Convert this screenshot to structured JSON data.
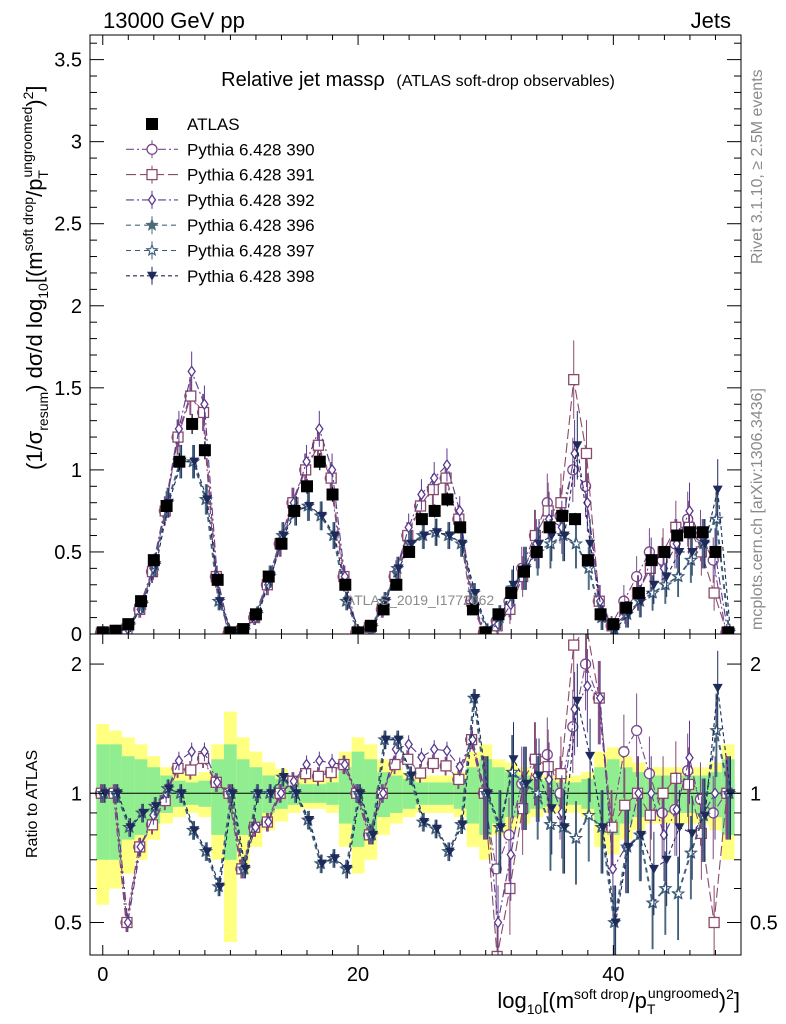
{
  "header": {
    "left": "13000 GeV pp",
    "right": "Jets"
  },
  "side_labels": {
    "rivet": "Rivet 3.1.10, ≥ 2.5M events",
    "mcplots": "mcplots.cern.ch [arXiv:1306.3436]"
  },
  "watermark": "ATLAS_2019_I1772062",
  "chart_data": {
    "type": "scatter",
    "title_main": "Relative jet massρ",
    "title_sub": "(ATLAS soft-drop observables)",
    "ylabel_main": "(1/σresum) dσ/d log10[(m^soft drop/pT^ungroomed)^2]",
    "ylabel_ratio": "Ratio to ATLAS",
    "xlabel": "log10[(m^soft drop/pT^ungroomed)^2]",
    "x_ticks": [
      "0",
      "20",
      "40"
    ],
    "y_ticks_main": [
      "0",
      "0.5",
      "1",
      "1.5",
      "2",
      "2.5",
      "3",
      "3.5"
    ],
    "y_ticks_ratio": [
      "0.5",
      "1",
      "2"
    ],
    "xlim": [
      -1,
      50
    ],
    "ylim_main": [
      0,
      3.65
    ],
    "ylim_ratio": [
      0.42,
      2.35
    ],
    "ratio_log_scale": true,
    "legend_position": "top-left",
    "x": [
      0,
      1,
      2,
      3,
      4,
      5,
      6,
      7,
      8,
      9,
      10,
      11,
      12,
      13,
      14,
      15,
      16,
      17,
      18,
      19,
      20,
      21,
      22,
      23,
      24,
      25,
      26,
      27,
      28,
      29,
      30,
      31,
      32,
      33,
      34,
      35,
      36,
      37,
      38,
      39,
      40,
      41,
      42,
      43,
      44,
      45,
      46,
      47,
      48,
      49
    ],
    "data": {
      "name": "ATLAS",
      "values": [
        0.01,
        0.02,
        0.06,
        0.2,
        0.45,
        0.78,
        1.05,
        1.28,
        1.12,
        0.33,
        0.01,
        0.03,
        0.12,
        0.35,
        0.55,
        0.75,
        0.9,
        1.05,
        0.85,
        0.3,
        0.01,
        0.05,
        0.15,
        0.3,
        0.5,
        0.7,
        0.75,
        0.82,
        0.65,
        0.15,
        0.01,
        0.12,
        0.25,
        0.38,
        0.5,
        0.65,
        0.72,
        0.7,
        0.45,
        0.12,
        0.06,
        0.16,
        0.25,
        0.45,
        0.5,
        0.6,
        0.62,
        0.62,
        0.5,
        0.01
      ],
      "stat_band": [
        0.3,
        0.3,
        0.22,
        0.2,
        0.15,
        0.1,
        0.07,
        0.06,
        0.07,
        0.2,
        0.3,
        0.2,
        0.15,
        0.1,
        0.08,
        0.06,
        0.05,
        0.05,
        0.06,
        0.15,
        0.25,
        0.2,
        0.12,
        0.1,
        0.08,
        0.06,
        0.06,
        0.06,
        0.08,
        0.15,
        0.2,
        0.15,
        0.12,
        0.1,
        0.08,
        0.07,
        0.06,
        0.06,
        0.08,
        0.15,
        0.2,
        0.15,
        0.12,
        0.1,
        0.1,
        0.1,
        0.1,
        0.1,
        0.12,
        0.2
      ],
      "total_band": [
        0.45,
        0.4,
        0.35,
        0.3,
        0.22,
        0.15,
        0.12,
        0.1,
        0.12,
        0.3,
        0.55,
        0.35,
        0.25,
        0.18,
        0.14,
        0.1,
        0.08,
        0.08,
        0.1,
        0.25,
        0.35,
        0.3,
        0.2,
        0.15,
        0.12,
        0.1,
        0.1,
        0.1,
        0.12,
        0.25,
        0.3,
        0.2,
        0.18,
        0.15,
        0.12,
        0.1,
        0.1,
        0.1,
        0.12,
        0.25,
        0.28,
        0.22,
        0.18,
        0.15,
        0.15,
        0.15,
        0.15,
        0.15,
        0.18,
        0.3
      ]
    },
    "series": [
      {
        "name": "Pythia 6.428 390",
        "color": "#7a4a8a",
        "marker": "circle-open",
        "dash": "8,3,2,3",
        "values": [
          0.005,
          0.01,
          0.03,
          0.15,
          0.38,
          0.75,
          1.2,
          1.45,
          1.35,
          0.35,
          0.005,
          0.02,
          0.1,
          0.3,
          0.55,
          0.8,
          1.0,
          1.15,
          0.95,
          0.35,
          0.01,
          0.04,
          0.15,
          0.35,
          0.6,
          0.78,
          0.88,
          0.95,
          0.7,
          0.2,
          0.01,
          0.08,
          0.2,
          0.4,
          0.6,
          0.8,
          0.72,
          1.0,
          0.9,
          0.2,
          0.05,
          0.2,
          0.35,
          0.5,
          0.45,
          0.55,
          0.7,
          0.6,
          0.45,
          0.01
        ]
      },
      {
        "name": "Pythia 6.428 391",
        "color": "#8a4a6a",
        "marker": "square-open",
        "dash": "10,4",
        "values": [
          0.005,
          0.01,
          0.03,
          0.15,
          0.38,
          0.75,
          1.2,
          1.45,
          1.35,
          0.35,
          0.005,
          0.02,
          0.1,
          0.3,
          0.55,
          0.8,
          1.0,
          1.15,
          0.95,
          0.35,
          0.01,
          0.04,
          0.15,
          0.35,
          0.6,
          0.78,
          0.88,
          0.95,
          0.7,
          0.2,
          0.01,
          0.05,
          0.15,
          0.35,
          0.6,
          0.75,
          0.8,
          1.55,
          1.1,
          0.2,
          0.05,
          0.15,
          0.25,
          0.4,
          0.5,
          0.65,
          0.65,
          0.5,
          0.25,
          0.01
        ]
      },
      {
        "name": "Pythia 6.428 392",
        "color": "#5a3a90",
        "marker": "diamond-open",
        "dash": "8,3,2,3",
        "values": [
          0.005,
          0.01,
          0.03,
          0.15,
          0.4,
          0.78,
          1.25,
          1.6,
          1.4,
          0.35,
          0.005,
          0.02,
          0.1,
          0.3,
          0.55,
          0.8,
          1.05,
          1.25,
          1.0,
          0.35,
          0.01,
          0.04,
          0.15,
          0.38,
          0.65,
          0.85,
          0.95,
          1.03,
          0.75,
          0.2,
          0.01,
          0.06,
          0.18,
          0.4,
          0.55,
          0.7,
          0.65,
          1.1,
          0.8,
          0.2,
          0.04,
          0.12,
          0.25,
          0.45,
          0.4,
          0.55,
          0.75,
          0.55,
          0.5,
          0.01
        ]
      },
      {
        "name": "Pythia 6.428 396",
        "color": "#4a6a7a",
        "marker": "star-filled",
        "dash": "5,4",
        "values": [
          0.008,
          0.015,
          0.05,
          0.18,
          0.42,
          0.8,
          1.05,
          1.05,
          0.82,
          0.2,
          0.005,
          0.02,
          0.12,
          0.35,
          0.6,
          0.75,
          0.78,
          0.72,
          0.6,
          0.2,
          0.01,
          0.04,
          0.2,
          0.4,
          0.55,
          0.6,
          0.62,
          0.6,
          0.55,
          0.25,
          0.02,
          0.1,
          0.28,
          0.4,
          0.5,
          0.55,
          0.6,
          0.55,
          0.4,
          0.1,
          0.03,
          0.12,
          0.2,
          0.25,
          0.3,
          0.35,
          0.45,
          0.55,
          0.7,
          0.01
        ]
      },
      {
        "name": "Pythia 6.428 397",
        "color": "#3a5a7a",
        "marker": "star-open",
        "dash": "5,4",
        "values": [
          0.008,
          0.015,
          0.05,
          0.18,
          0.42,
          0.8,
          1.05,
          1.05,
          0.82,
          0.2,
          0.005,
          0.02,
          0.12,
          0.35,
          0.6,
          0.75,
          0.78,
          0.72,
          0.6,
          0.2,
          0.01,
          0.04,
          0.2,
          0.4,
          0.55,
          0.6,
          0.62,
          0.6,
          0.55,
          0.25,
          0.02,
          0.1,
          0.28,
          0.4,
          0.5,
          0.55,
          0.6,
          0.55,
          0.4,
          0.1,
          0.03,
          0.12,
          0.2,
          0.25,
          0.3,
          0.35,
          0.45,
          0.55,
          0.7,
          0.01
        ]
      },
      {
        "name": "Pythia 6.428 398",
        "color": "#1e2a5a",
        "marker": "triangle-down-filled",
        "dash": "4,3",
        "values": [
          0.008,
          0.015,
          0.05,
          0.18,
          0.42,
          0.8,
          1.05,
          1.05,
          0.82,
          0.2,
          0.005,
          0.02,
          0.12,
          0.35,
          0.6,
          0.75,
          0.78,
          0.72,
          0.6,
          0.2,
          0.01,
          0.04,
          0.2,
          0.4,
          0.55,
          0.6,
          0.62,
          0.6,
          0.55,
          0.25,
          0.02,
          0.1,
          0.3,
          0.4,
          0.55,
          0.6,
          0.6,
          1.15,
          0.55,
          0.1,
          0.03,
          0.12,
          0.2,
          0.3,
          0.35,
          0.5,
          0.5,
          0.55,
          0.88,
          0.01
        ]
      }
    ]
  }
}
